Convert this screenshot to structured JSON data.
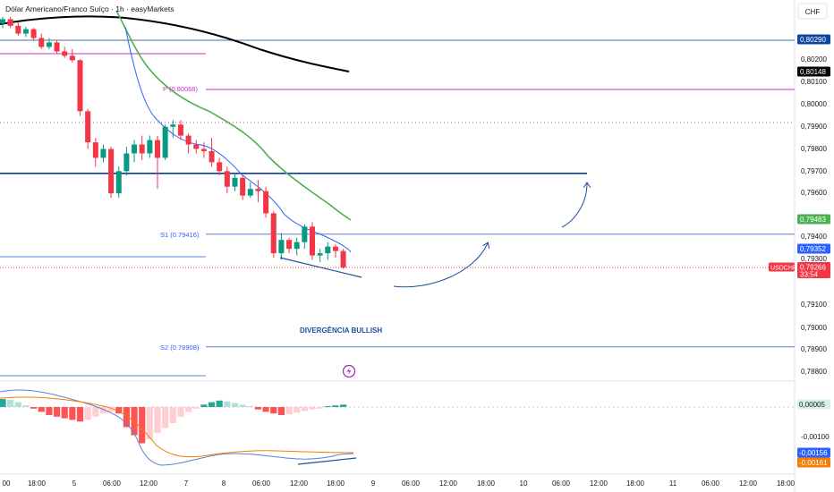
{
  "header": {
    "title": "Dólar Americano/Franco Suíço · 1h · easyMarkets",
    "currency_button": "CHF"
  },
  "colors": {
    "up": "#089981",
    "down": "#f23645",
    "ema_green": "#4caf50",
    "ema_black": "#000000",
    "ema_blue": "#2962ff",
    "level_blue": "#0b3d91",
    "pivot": "#c832c8",
    "annotation": "#1f4e9e",
    "macd_signal": "#f57c00"
  },
  "annotations": {
    "pivot": "P (0.80068)",
    "s1": "S1 (0.79416)",
    "s2": "S2 (0.78908)",
    "divergence": "DIVERGÊNCIA BULLISH",
    "flash_icon": "lightning-icon"
  },
  "chart_data": {
    "type": "candlestick",
    "ylim": [
      0.7875,
      0.8036
    ],
    "y_ticks": [
      "0,80200",
      "0,80100",
      "0,80000",
      "0,79900",
      "0,79800",
      "0,79700",
      "0,79600",
      "0,79400",
      "0,79300",
      "0,79100",
      "0,79000",
      "0,78900",
      "0,78800"
    ],
    "x_ticks": [
      "00",
      "18:00",
      "5",
      "06:00",
      "12:00",
      "7",
      "8",
      "06:00",
      "12:00",
      "18:00",
      "9",
      "06:00",
      "12:00",
      "18:00",
      "10",
      "06:00",
      "12:00",
      "18:00",
      "11",
      "06:00",
      "12:00",
      "18:00"
    ],
    "price_tags": [
      {
        "label": "0,80290",
        "value": 0.8029,
        "style": "blue"
      },
      {
        "label": "0,80148",
        "value": 0.80148,
        "style": "black"
      },
      {
        "label": "0,79483",
        "value": 0.79483,
        "style": "green"
      },
      {
        "label": "0,79352",
        "value": 0.79352,
        "style": "blue"
      },
      {
        "label": "0,79266",
        "value": 0.79266,
        "style": "red",
        "symbol": "USDCHF",
        "countdown": "33:54"
      }
    ],
    "levels": [
      {
        "name": "resistance",
        "value": 0.8029
      },
      {
        "name": "pivot",
        "value": 0.80068
      },
      {
        "name": "dotted",
        "value": 0.7992
      },
      {
        "name": "support-zone",
        "value": 0.7969
      },
      {
        "name": "s1",
        "value": 0.79416
      },
      {
        "name": "current",
        "value": 0.79266
      },
      {
        "name": "s2",
        "value": 0.78908
      }
    ],
    "candles": [
      [
        0.80365,
        0.80395,
        0.80345,
        0.80385
      ],
      [
        0.80385,
        0.80395,
        0.80345,
        0.80355
      ],
      [
        0.80355,
        0.8037,
        0.8031,
        0.8032
      ],
      [
        0.8032,
        0.8035,
        0.80305,
        0.8034
      ],
      [
        0.8034,
        0.80345,
        0.8029,
        0.803
      ],
      [
        0.803,
        0.8032,
        0.8025,
        0.8026
      ],
      [
        0.8026,
        0.803,
        0.8025,
        0.8028
      ],
      [
        0.8028,
        0.8029,
        0.8023,
        0.8024
      ],
      [
        0.8024,
        0.8026,
        0.8021,
        0.8022
      ],
      [
        0.8022,
        0.8025,
        0.8019,
        0.802
      ],
      [
        0.802,
        0.80205,
        0.7995,
        0.7997
      ],
      [
        0.7997,
        0.7998,
        0.798,
        0.7983
      ],
      [
        0.7983,
        0.7985,
        0.7972,
        0.7976
      ],
      [
        0.7976,
        0.7982,
        0.7974,
        0.798
      ],
      [
        0.798,
        0.7981,
        0.7958,
        0.796
      ],
      [
        0.796,
        0.7972,
        0.7958,
        0.797
      ],
      [
        0.797,
        0.7981,
        0.7968,
        0.7978
      ],
      [
        0.7978,
        0.7984,
        0.7974,
        0.7982
      ],
      [
        0.7982,
        0.7986,
        0.7975,
        0.7978
      ],
      [
        0.7978,
        0.7986,
        0.7976,
        0.7984
      ],
      [
        0.7984,
        0.7986,
        0.7962,
        0.7976
      ],
      [
        0.7976,
        0.7991,
        0.7975,
        0.799
      ],
      [
        0.799,
        0.7993,
        0.7985,
        0.7991
      ],
      [
        0.7991,
        0.7993,
        0.7984,
        0.7986
      ],
      [
        0.7986,
        0.7987,
        0.7978,
        0.7982
      ],
      [
        0.7982,
        0.7984,
        0.7978,
        0.798
      ],
      [
        0.798,
        0.7983,
        0.7976,
        0.7979
      ],
      [
        0.7979,
        0.7985,
        0.7972,
        0.7974
      ],
      [
        0.7974,
        0.7976,
        0.7968,
        0.797
      ],
      [
        0.797,
        0.7972,
        0.796,
        0.7963
      ],
      [
        0.7963,
        0.7969,
        0.7961,
        0.7967
      ],
      [
        0.7967,
        0.7968,
        0.7957,
        0.7959
      ],
      [
        0.7959,
        0.7965,
        0.7958,
        0.7962
      ],
      [
        0.7962,
        0.7966,
        0.7956,
        0.7961
      ],
      [
        0.7961,
        0.7963,
        0.7949,
        0.7951
      ],
      [
        0.7951,
        0.7952,
        0.7931,
        0.7933
      ],
      [
        0.7933,
        0.7942,
        0.793,
        0.7939
      ],
      [
        0.7939,
        0.794,
        0.7933,
        0.7935
      ],
      [
        0.7935,
        0.794,
        0.7932,
        0.7938
      ],
      [
        0.7938,
        0.7946,
        0.7935,
        0.7945
      ],
      [
        0.7945,
        0.7947,
        0.793,
        0.7932
      ],
      [
        0.7932,
        0.7935,
        0.7929,
        0.7933
      ],
      [
        0.7933,
        0.7938,
        0.793,
        0.7936
      ],
      [
        0.7936,
        0.7937,
        0.7931,
        0.7934
      ],
      [
        0.7934,
        0.7935,
        0.7926,
        0.79266
      ]
    ],
    "macd": {
      "y_ticks": [
        "0,00005",
        "-0,00100",
        "-0,00156",
        "-0,00161"
      ],
      "ylim": [
        -0.0019,
        0.0004
      ],
      "histogram": [
        0.0001,
        9e-05,
        6e-05,
        2e-05,
        -2e-05,
        -6e-05,
        -0.0001,
        -0.00012,
        -0.00014,
        -0.00016,
        -0.00018,
        -0.00016,
        -0.00012,
        -8e-05,
        -6e-05,
        -8e-05,
        -0.00025,
        -0.00035,
        -0.00045,
        -0.0004,
        -0.00032,
        -0.00026,
        -0.0002,
        -0.00012,
        -6e-05,
        -2e-05,
        3e-05,
        6e-05,
        8e-05,
        7e-05,
        5e-05,
        3e-05,
        1e-05,
        -3e-05,
        -6e-05,
        -8e-05,
        -0.0001,
        -9e-05,
        -7e-05,
        -5e-05,
        -3e-05,
        -2e-05,
        1e-05,
        2e-05,
        3e-05
      ]
    }
  }
}
